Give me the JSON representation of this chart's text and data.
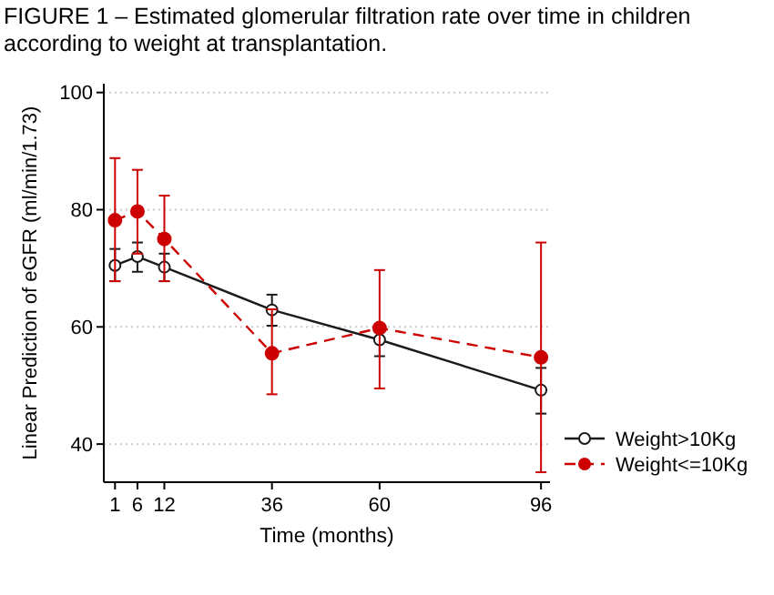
{
  "chart_data": {
    "type": "line",
    "title": "FIGURE 1 – Estimated glomerular filtration rate over time in children according to weight at transplantation.",
    "xlabel": "Time (months)",
    "ylabel": "Linear Prediction of eGFR (ml/min/1.73)",
    "x": [
      1,
      6,
      12,
      36,
      60,
      96
    ],
    "series": [
      {
        "name": "Weight>10Kg",
        "color": "#1a1a1a",
        "marker": "circle",
        "line_style": "solid",
        "values": [
          70.5,
          72,
          70.2,
          62.9,
          57.8,
          49.2
        ],
        "errors": [
          [
            67.8,
            73.3
          ],
          [
            69.4,
            74.4
          ],
          [
            67.8,
            72.5
          ],
          [
            60.2,
            65.5
          ],
          [
            55,
            60.5
          ],
          [
            45.2,
            53
          ]
        ]
      },
      {
        "name": "Weight<=10Kg",
        "color": "#cc0000",
        "marker": "circle",
        "line_style": "dashed",
        "values": [
          78.2,
          79.7,
          75,
          55.5,
          59.8,
          54.8
        ],
        "errors": [
          [
            67.8,
            88.8
          ],
          [
            72.5,
            86.8
          ],
          [
            67.8,
            82.4
          ],
          [
            48.5,
            63
          ],
          [
            49.5,
            69.7
          ],
          [
            35.2,
            74.4
          ]
        ]
      }
    ],
    "xlim": [
      -1.5,
      98
    ],
    "xticks": [
      1,
      6,
      12,
      36,
      60,
      96
    ],
    "ylim": [
      33.5,
      101.5
    ],
    "yticks": [
      40,
      60,
      80,
      100
    ],
    "grid": "y",
    "legend": "bottom right"
  }
}
